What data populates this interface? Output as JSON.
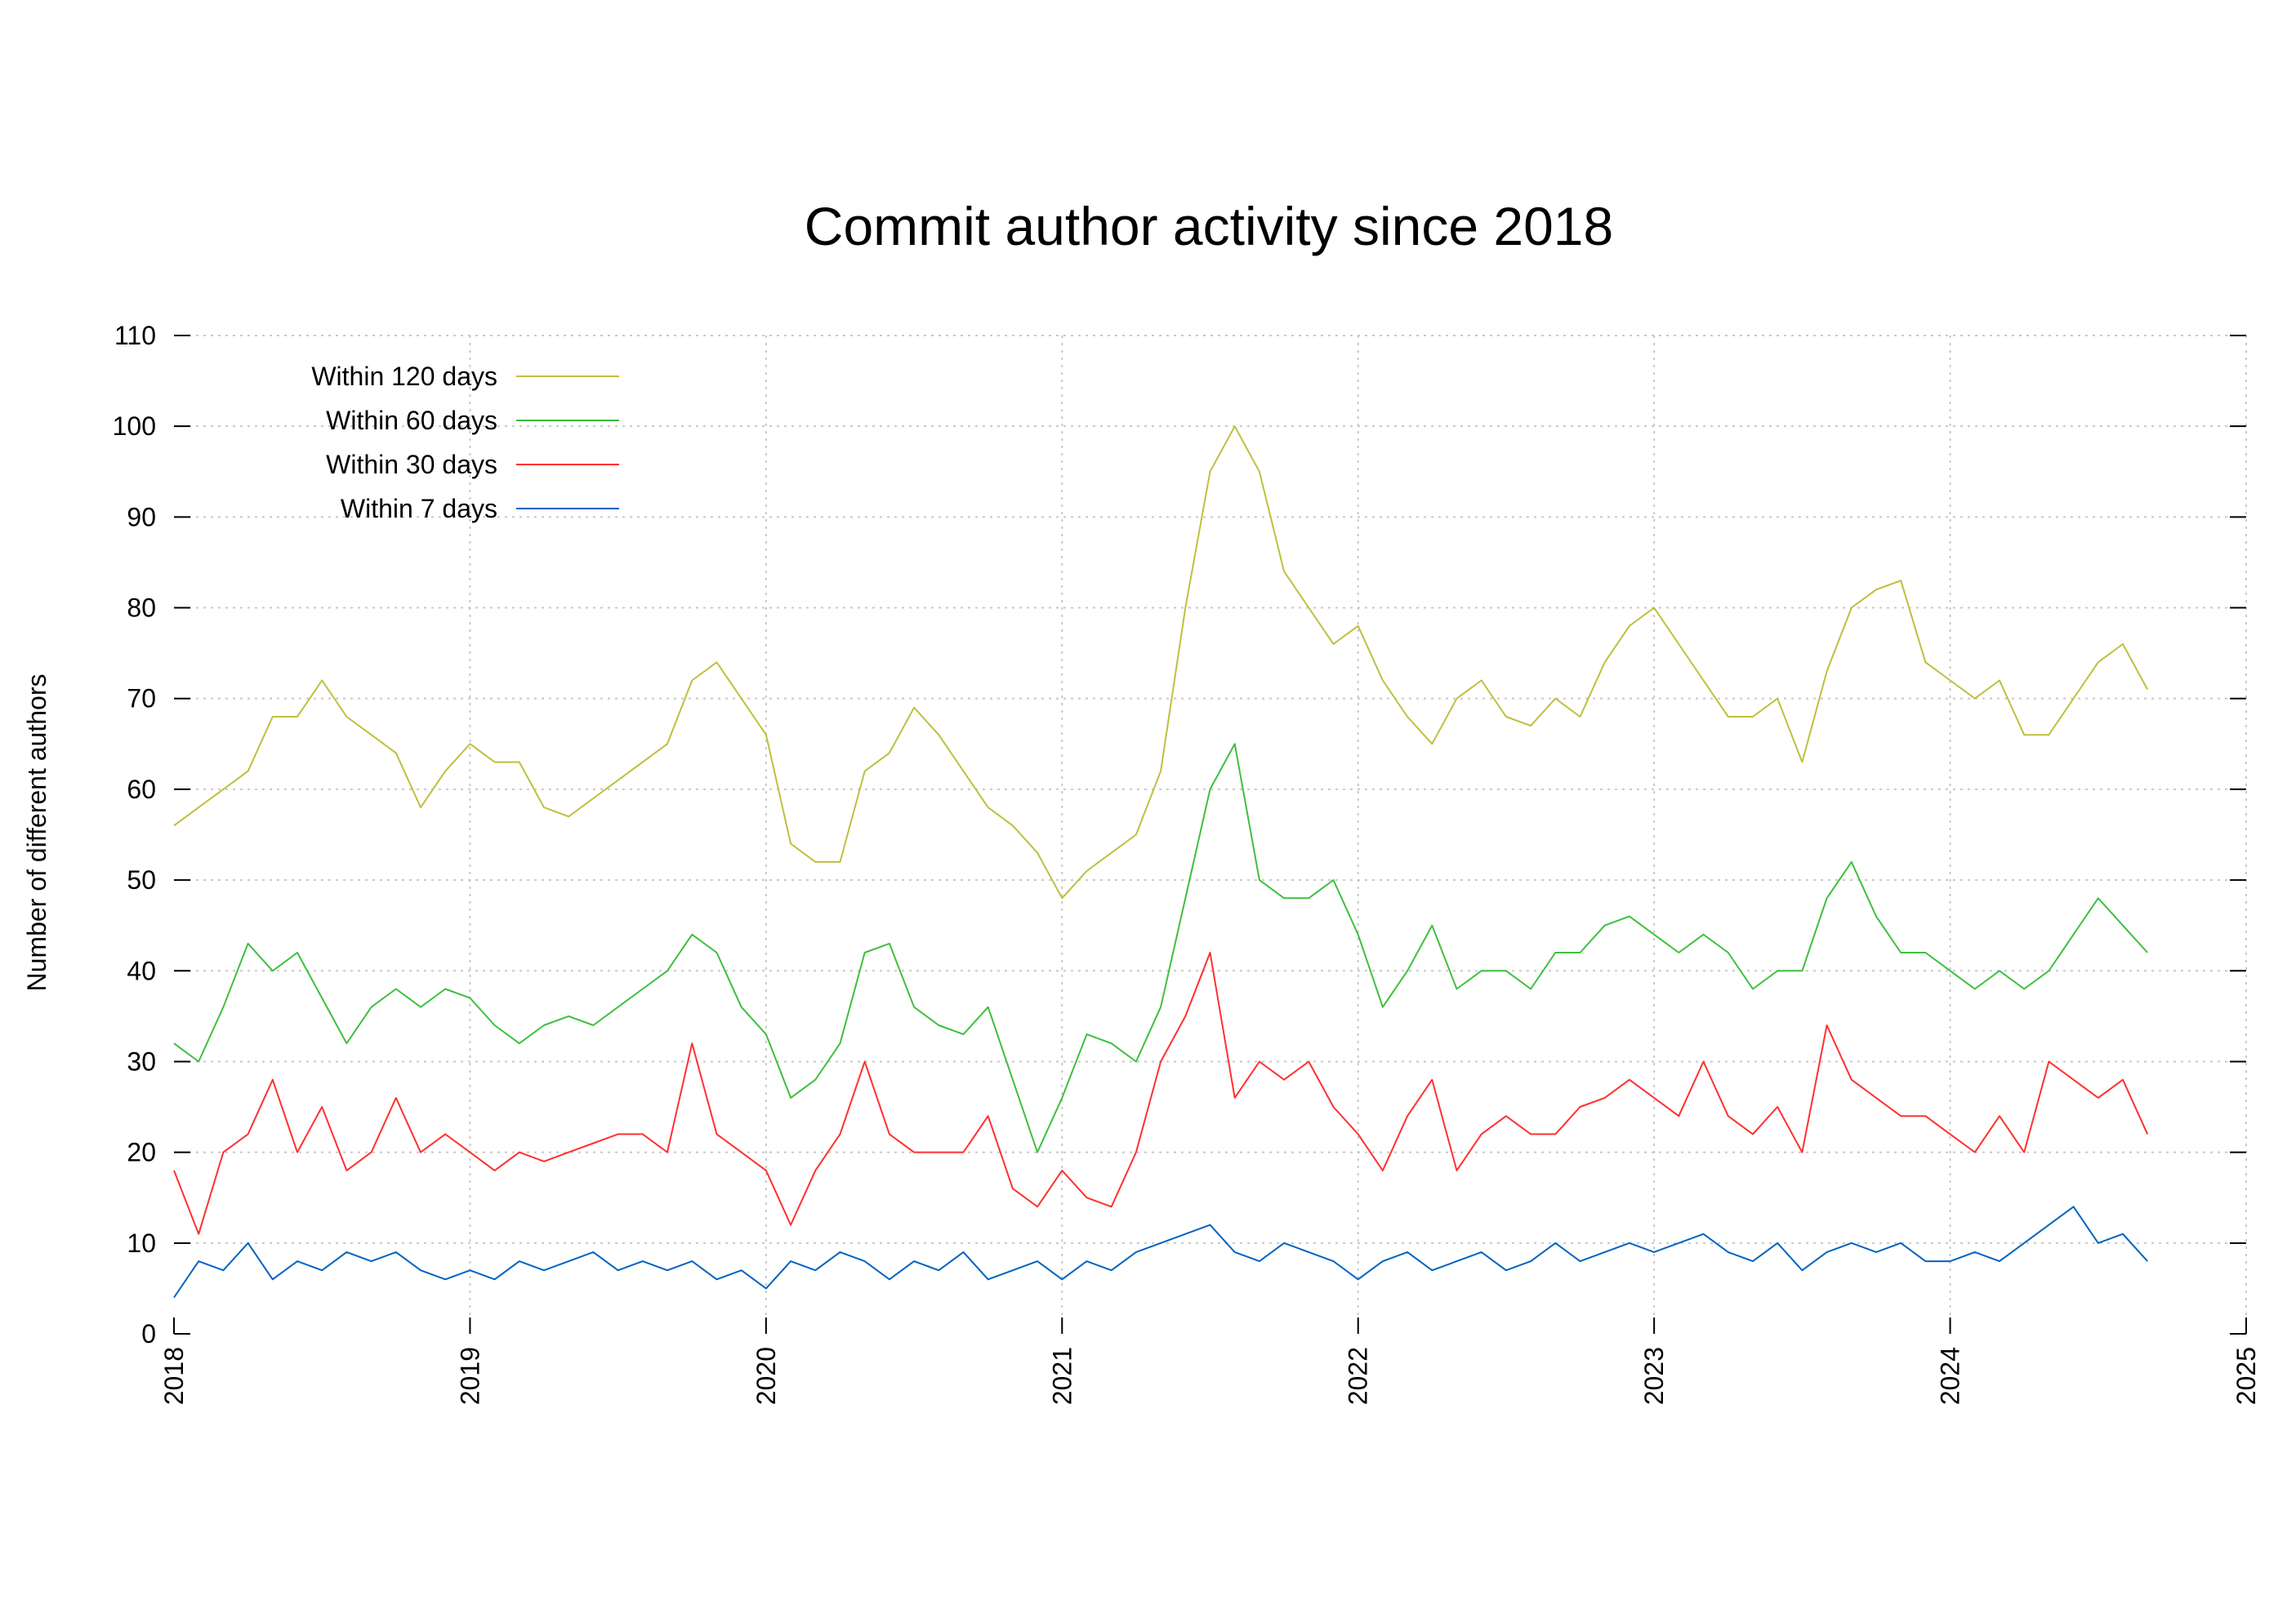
{
  "chart_data": {
    "type": "line",
    "title": "Commit author activity since 2018",
    "xlabel": "",
    "ylabel": "Number of different authors",
    "xlim": [
      2018,
      2025
    ],
    "ylim": [
      0,
      110
    ],
    "grid": true,
    "legend_position": "top-left",
    "x_ticks": [
      "2018",
      "2019",
      "2020",
      "2021",
      "2022",
      "2023",
      "2024",
      "2025"
    ],
    "y_ticks": [
      "0",
      "10",
      "20",
      "30",
      "40",
      "50",
      "60",
      "70",
      "80",
      "90",
      "100",
      "110"
    ],
    "x_note": "monthly samples starting Jan 2018",
    "series": [
      {
        "name": "Within 120 days",
        "color": "#bfbf3f",
        "values": [
          56,
          58,
          60,
          62,
          68,
          68,
          72,
          68,
          66,
          64,
          58,
          62,
          65,
          63,
          63,
          58,
          57,
          59,
          61,
          63,
          65,
          72,
          74,
          70,
          66,
          54,
          52,
          52,
          62,
          64,
          69,
          66,
          62,
          58,
          56,
          53,
          48,
          51,
          53,
          55,
          62,
          80,
          95,
          100,
          95,
          84,
          80,
          76,
          78,
          72,
          68,
          65,
          70,
          72,
          68,
          67,
          70,
          68,
          74,
          78,
          80,
          76,
          72,
          68,
          68,
          70,
          63,
          73,
          80,
          82,
          83,
          74,
          72,
          70,
          72,
          66,
          66,
          70,
          74,
          76,
          71
        ]
      },
      {
        "name": "Within 60 days",
        "color": "#3fbf3f",
        "values": [
          32,
          30,
          36,
          43,
          40,
          42,
          37,
          32,
          36,
          38,
          36,
          38,
          37,
          34,
          32,
          34,
          35,
          34,
          36,
          38,
          40,
          44,
          42,
          36,
          33,
          26,
          28,
          32,
          42,
          43,
          36,
          34,
          33,
          36,
          28,
          20,
          26,
          33,
          32,
          30,
          36,
          48,
          60,
          65,
          50,
          48,
          48,
          50,
          44,
          36,
          40,
          45,
          38,
          40,
          40,
          38,
          42,
          42,
          45,
          46,
          44,
          42,
          44,
          42,
          38,
          40,
          40,
          48,
          52,
          46,
          42,
          42,
          40,
          38,
          40,
          38,
          40,
          44,
          48,
          45,
          42
        ]
      },
      {
        "name": "Within 30 days",
        "color": "#ff3030",
        "values": [
          18,
          11,
          20,
          22,
          28,
          20,
          25,
          18,
          20,
          26,
          20,
          22,
          20,
          18,
          20,
          19,
          20,
          21,
          22,
          22,
          20,
          32,
          22,
          20,
          18,
          12,
          18,
          22,
          30,
          22,
          20,
          20,
          20,
          24,
          16,
          14,
          18,
          15,
          14,
          20,
          30,
          35,
          42,
          26,
          30,
          28,
          30,
          25,
          22,
          18,
          24,
          28,
          18,
          22,
          24,
          22,
          22,
          25,
          26,
          28,
          26,
          24,
          30,
          24,
          22,
          25,
          20,
          34,
          28,
          26,
          24,
          24,
          22,
          20,
          24,
          20,
          30,
          28,
          26,
          28,
          22
        ]
      },
      {
        "name": "Within 7 days",
        "color": "#0063bf",
        "values": [
          4,
          8,
          7,
          10,
          6,
          8,
          7,
          9,
          8,
          9,
          7,
          6,
          7,
          6,
          8,
          7,
          8,
          9,
          7,
          8,
          7,
          8,
          6,
          7,
          5,
          8,
          7,
          9,
          8,
          6,
          8,
          7,
          9,
          6,
          7,
          8,
          6,
          8,
          7,
          9,
          10,
          11,
          12,
          9,
          8,
          10,
          9,
          8,
          6,
          8,
          9,
          7,
          8,
          9,
          7,
          8,
          10,
          8,
          9,
          10,
          9,
          10,
          11,
          9,
          8,
          10,
          7,
          9,
          10,
          9,
          10,
          8,
          8,
          9,
          8,
          10,
          12,
          14,
          10,
          11,
          8
        ]
      }
    ]
  }
}
